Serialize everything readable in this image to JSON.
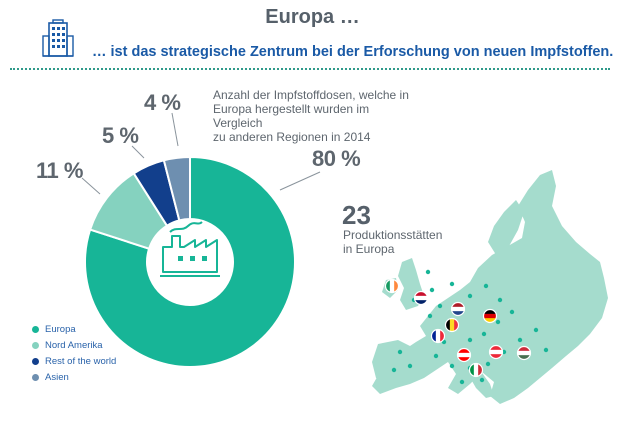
{
  "header": {
    "title": "Europa …",
    "subtitle": "… ist das strategische Zentrum bei der Erforschung von neuen Impfstoffen."
  },
  "chart_data": {
    "type": "pie",
    "title": "Anzahl der Impfstoffdosen, welche in Europa hergestellt wurden im Vergleich zu anderen Regionen in 2014",
    "title_lines": [
      "Anzahl der Impfstoffdosen, welche in",
      "Europa hergestellt wurden im Vergleich",
      "zu anderen Regionen in 2014"
    ],
    "categories": [
      "Europa",
      "Nord Amerika",
      "Rest of the world",
      "Asien"
    ],
    "values": [
      80,
      11,
      5,
      4
    ],
    "value_labels": [
      "80 %",
      "11 %",
      "5 %",
      "4 %"
    ],
    "colors": [
      "#17b597",
      "#85d2bf",
      "#123f8c",
      "#6e8fb0"
    ],
    "legend_placement": "bottom-left"
  },
  "sites": {
    "count": "23",
    "label_line1": "Produktionsstätten",
    "label_line2": "in Europa"
  },
  "icons": {
    "header": "office-building-icon",
    "center": "factory-icon",
    "map": "europe-map-with-flags"
  }
}
